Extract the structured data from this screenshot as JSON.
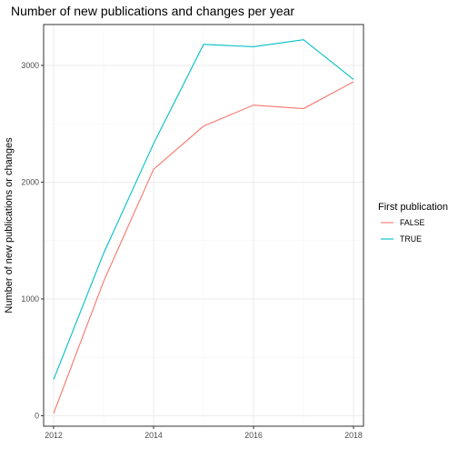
{
  "chart_data": {
    "type": "line",
    "title": "Number of new publications and changes per year",
    "xlabel": "",
    "ylabel": "Number of new publications or changes",
    "x": [
      2012,
      2013,
      2014,
      2015,
      2016,
      2017,
      2018
    ],
    "xlim": [
      2011.8,
      2018.2
    ],
    "ylim": [
      -90,
      3350
    ],
    "x_ticks": [
      2012,
      2014,
      2016,
      2018
    ],
    "y_ticks": [
      0,
      1000,
      2000,
      3000
    ],
    "grid": true,
    "legend": {
      "title": "First publication",
      "position": "right"
    },
    "series": [
      {
        "name": "FALSE",
        "color": "#F8766D",
        "values": [
          20,
          1150,
          2110,
          2480,
          2660,
          2630,
          2860
        ]
      },
      {
        "name": "TRUE",
        "color": "#00BFC4",
        "values": [
          310,
          1390,
          2330,
          3180,
          3160,
          3220,
          2880
        ]
      }
    ]
  }
}
